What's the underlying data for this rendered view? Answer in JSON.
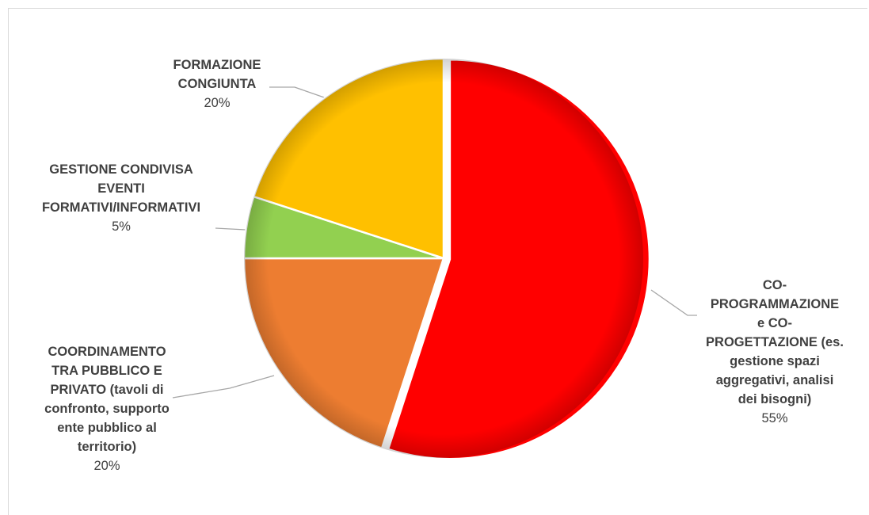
{
  "chart_data": {
    "type": "pie",
    "slices": [
      {
        "label": "CO-\nPROGRAMMAZIONE\ne CO-\nPROGETTAZIONE (es.\ngestione spazi\naggregativi, analisi\ndei bisogni)",
        "value": 55,
        "value_label": "55%",
        "color": "#ff0000"
      },
      {
        "label": "COORDINAMENTO\nTRA PUBBLICO E\nPRIVATO (tavoli di\nconfronto, supporto\nente pubblico al\nterritorio)",
        "value": 20,
        "value_label": "20%",
        "color": "#ed7d31"
      },
      {
        "label": "GESTIONE CONDIVISA\nEVENTI\nFORMATIVI/INFORMATIVI",
        "value": 5,
        "value_label": "5%",
        "color": "#92d050"
      },
      {
        "label": "FORMAZIONE\nCONGIUNTA",
        "value": 20,
        "value_label": "20%",
        "color": "#ffc000"
      }
    ],
    "start_angle_deg": 0,
    "direction": "clockwise",
    "exploded_slice": "CO-PROGRAMMAZIONE e CO-PROGETTAZIONE",
    "legend": "none",
    "data_labels": "outside with leader lines"
  }
}
